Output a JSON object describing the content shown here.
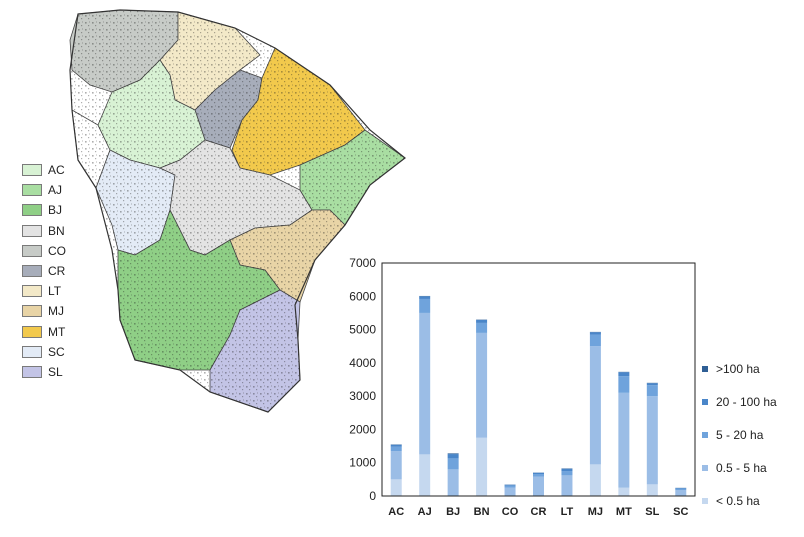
{
  "map": {
    "regions": [
      {
        "code": "AC",
        "color": "#d8f2d4"
      },
      {
        "code": "AJ",
        "color": "#a9dea2"
      },
      {
        "code": "BJ",
        "color": "#8fcf86"
      },
      {
        "code": "BN",
        "color": "#e3e3e3"
      },
      {
        "code": "CO",
        "color": "#c7cbc7"
      },
      {
        "code": "CR",
        "color": "#a7adba"
      },
      {
        "code": "LT",
        "color": "#f3e9c8"
      },
      {
        "code": "MJ",
        "color": "#e8d4a6"
      },
      {
        "code": "MT",
        "color": "#f2c94c"
      },
      {
        "code": "SC",
        "color": "#e3ebf6"
      },
      {
        "code": "SL",
        "color": "#c3c4e6"
      }
    ]
  },
  "chart_data": {
    "type": "bar",
    "stacked": true,
    "categories": [
      "AC",
      "AJ",
      "BJ",
      "BN",
      "CO",
      "CR",
      "LT",
      "MJ",
      "MT",
      "SL",
      "SC"
    ],
    "ylim": [
      0,
      7000
    ],
    "yticks": [
      "0",
      "1000",
      "2000",
      "3000",
      "4000",
      "5000",
      "6000",
      "7000"
    ],
    "legend_position": "right",
    "series": [
      {
        "name": "< 0.5 ha",
        "color": "#c5d8ef",
        "values": [
          500,
          1250,
          0,
          1750,
          0,
          0,
          0,
          950,
          250,
          350,
          0
        ]
      },
      {
        "name": "0.5 - 5 ha",
        "color": "#9bbde6",
        "values": [
          850,
          4250,
          800,
          3150,
          250,
          580,
          620,
          3550,
          2850,
          2650,
          180
        ]
      },
      {
        "name": "5 - 20 ha",
        "color": "#6fa3dc",
        "values": [
          130,
          420,
          330,
          300,
          60,
          80,
          130,
          350,
          500,
          330,
          40
        ]
      },
      {
        "name": "20 - 100 ha",
        "color": "#4a86c9",
        "values": [
          60,
          80,
          130,
          90,
          30,
          40,
          70,
          70,
          120,
          60,
          20
        ]
      },
      {
        "name": ">100 ha",
        "color": "#2f5f95",
        "values": [
          10,
          10,
          20,
          10,
          5,
          5,
          10,
          10,
          10,
          10,
          5
        ]
      }
    ]
  }
}
